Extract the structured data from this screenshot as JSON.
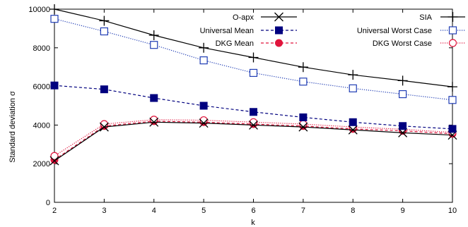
{
  "chart_data": {
    "type": "line",
    "xlabel": "k",
    "ylabel": "Standard deviation σ",
    "x": [
      2,
      3,
      4,
      5,
      6,
      7,
      8,
      9,
      10
    ],
    "xlim": [
      2,
      10
    ],
    "ylim": [
      0,
      10000
    ],
    "yticks": [
      0,
      2000,
      4000,
      6000,
      8000,
      10000
    ],
    "grid": false,
    "legend": "top, two columns",
    "series": [
      {
        "name": "O-apx",
        "color": "#000000",
        "dash": "solid",
        "marker": "x",
        "values": [
          2150,
          3900,
          4150,
          4100,
          4000,
          3900,
          3750,
          3600,
          3480
        ]
      },
      {
        "name": "SIA",
        "color": "#000000",
        "dash": "solid",
        "marker": "plus",
        "values": [
          10000,
          9400,
          8650,
          8000,
          7500,
          7000,
          6600,
          6300,
          5980
        ]
      },
      {
        "name": "Universal Mean",
        "color": "#00007f",
        "dash": "dashed",
        "marker": "filled-square",
        "values": [
          6050,
          5850,
          5400,
          5000,
          4680,
          4400,
          4150,
          3950,
          3800
        ]
      },
      {
        "name": "Universal Worst Case",
        "color": "#1f3cb4",
        "dash": "dotted",
        "marker": "open-square",
        "values": [
          9500,
          8850,
          8150,
          7350,
          6700,
          6250,
          5900,
          5600,
          5300
        ]
      },
      {
        "name": "DKG Mean",
        "color": "#e0143c",
        "dash": "dashed",
        "marker": "filled-circle",
        "values": [
          2200,
          3950,
          4200,
          4150,
          4050,
          3950,
          3800,
          3700,
          3550
        ]
      },
      {
        "name": "DKG Worst Case",
        "color": "#e0143c",
        "dash": "dotted",
        "marker": "open-circle",
        "values": [
          2400,
          4050,
          4280,
          4250,
          4150,
          4050,
          3900,
          3780,
          3620
        ]
      }
    ]
  }
}
